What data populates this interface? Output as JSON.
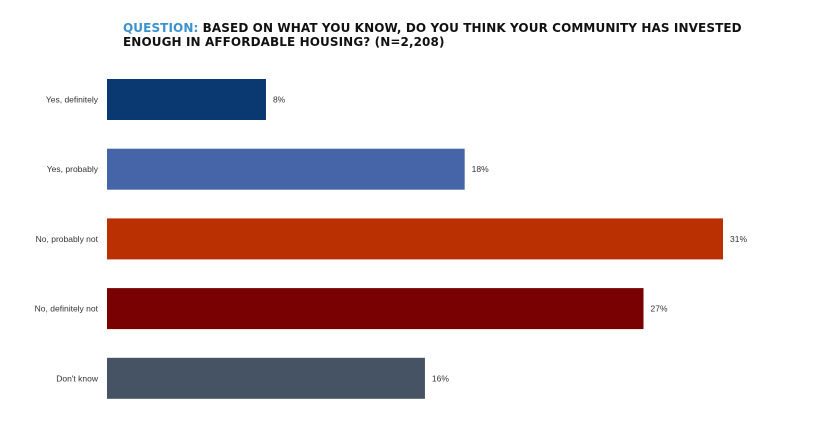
{
  "title": {
    "prefix": "QUESTION:",
    "text": " BASED ON WHAT YOU KNOW, DO YOU THINK YOUR COMMUNITY HAS INVESTED ENOUGH IN AFFORDABLE HOUSING? (N=2,208)"
  },
  "colors": {
    "title_prefix": "#3a93cf",
    "bars": [
      "#0a3871",
      "#4565a8",
      "#ba3002",
      "#790102",
      "#465364"
    ]
  },
  "chart_data": {
    "type": "bar",
    "orientation": "horizontal",
    "categories": [
      "Yes, definitely",
      "Yes, probably",
      "No, probably not",
      "No, definitely not",
      "Don't know"
    ],
    "values": [
      8,
      18,
      31,
      27,
      16
    ],
    "value_labels": [
      "8%",
      "18%",
      "31%",
      "27%",
      "16%"
    ],
    "unit": "%",
    "xlim": [
      0,
      31
    ],
    "grid": false,
    "legend": "none"
  }
}
